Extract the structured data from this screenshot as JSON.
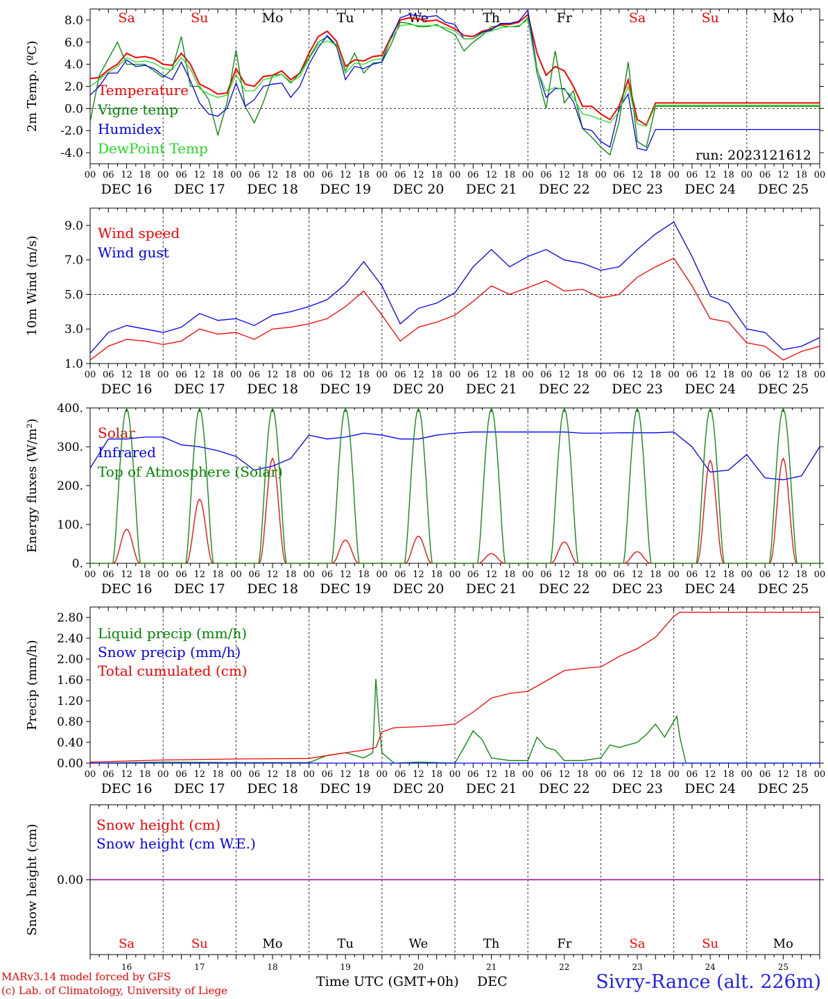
{
  "colors": {
    "red": "#ff0000",
    "green": "#008800",
    "blue": "#0000ff",
    "lime": "#22dd22",
    "purple": "#8800aa",
    "black": "#000000"
  },
  "days": [
    {
      "abbr": "Sa",
      "date": "DEC 16",
      "num": "16",
      "weekend": true
    },
    {
      "abbr": "Su",
      "date": "DEC 17",
      "num": "17",
      "weekend": true
    },
    {
      "abbr": "Mo",
      "date": "DEC 18",
      "num": "18",
      "weekend": false
    },
    {
      "abbr": "Tu",
      "date": "DEC 19",
      "num": "19",
      "weekend": false
    },
    {
      "abbr": "We",
      "date": "DEC 20",
      "num": "20",
      "weekend": false
    },
    {
      "abbr": "Th",
      "date": "DEC 21",
      "num": "21",
      "weekend": false
    },
    {
      "abbr": "Fr",
      "date": "DEC 22",
      "num": "22",
      "weekend": false
    },
    {
      "abbr": "Sa",
      "date": "DEC 23",
      "num": "23",
      "weekend": true
    },
    {
      "abbr": "Su",
      "date": "DEC 24",
      "num": "24",
      "weekend": true
    },
    {
      "abbr": "Mo",
      "date": "DEC 25",
      "num": "25",
      "weekend": false
    }
  ],
  "hour_ticks": [
    "00",
    "06",
    "12",
    "18"
  ],
  "footer": {
    "credit1": "MARv3.14 model forced by GFS",
    "credit2": "(c) Lab. of Climatology, University of Liege",
    "xlabel": "Time UTC (GMT+0h)",
    "month": "DEC",
    "station": "Sivry-Rance (alt. 226m)"
  },
  "chart_data": [
    {
      "type": "line",
      "ylabel": "2m Temp. (ºC)",
      "ylim": [
        -5,
        9
      ],
      "yticks": [
        "-4.0",
        "-2.0",
        "0.0",
        "2.0",
        "4.0",
        "6.0",
        "8.0"
      ],
      "yticks_values": [
        -4,
        -2,
        0,
        2,
        4,
        6,
        8
      ],
      "ref_line": 0,
      "annotation": "run: 2023121612",
      "x_hours_from_dec16_00": [
        0,
        3,
        6,
        9,
        12,
        15,
        18,
        21,
        24,
        27,
        30,
        33,
        36,
        39,
        42,
        45,
        48,
        51,
        54,
        57,
        60,
        63,
        66,
        69,
        72,
        75,
        78,
        81,
        84,
        87,
        90,
        93,
        96,
        99,
        102,
        105,
        108,
        111,
        114,
        117,
        120,
        123,
        126,
        129,
        132,
        135,
        138,
        141,
        144,
        147,
        150,
        153,
        156,
        159,
        162,
        165,
        168,
        171,
        174,
        177,
        180,
        183,
        186,
        189,
        192,
        195,
        198,
        201,
        204,
        207,
        210,
        213,
        216,
        219,
        222,
        225,
        228,
        231,
        234,
        237,
        240
      ],
      "series": [
        {
          "name": "Temperature",
          "color": "red",
          "values": [
            2.7,
            2.8,
            3.5,
            4.0,
            5.0,
            4.6,
            4.7,
            4.5,
            4.0,
            3.9,
            5.0,
            4.0,
            2.2,
            1.8,
            1.3,
            1.4,
            3.6,
            2.2,
            2.0,
            2.9,
            3.0,
            3.4,
            2.6,
            3.2,
            5.0,
            6.5,
            7.0,
            6.1,
            3.8,
            4.4,
            4.3,
            4.7,
            4.8,
            6.5,
            8.0,
            8.2,
            8.1,
            7.9,
            8.0,
            7.6,
            7.2,
            6.6,
            6.5,
            7.0,
            7.2,
            7.6,
            7.6,
            7.8,
            8.5,
            5.0,
            3.0,
            3.8,
            3.4,
            2.0,
            0.2,
            0.2,
            -0.5,
            -1.0,
            0.2,
            2.6,
            -1.0,
            -1.5,
            0.5,
            0.5,
            0.5,
            0.5,
            0.5,
            0.5,
            0.5,
            0.5,
            0.5,
            0.5,
            0.5,
            0.5,
            0.5,
            0.5,
            0.5,
            0.5,
            0.5,
            0.5,
            0.5
          ]
        },
        {
          "name": "Vigne temp",
          "color": "green",
          "values": [
            -1.2,
            3.0,
            4.5,
            6.0,
            4.0,
            4.0,
            4.0,
            3.4,
            2.8,
            3.6,
            6.5,
            2.0,
            2.0,
            0.8,
            -2.4,
            0.5,
            5.3,
            0.2,
            -1.3,
            0.6,
            3.0,
            3.1,
            2.3,
            3.2,
            4.6,
            6.0,
            6.5,
            5.6,
            3.4,
            5.0,
            3.2,
            4.1,
            4.2,
            5.8,
            7.8,
            7.7,
            7.4,
            7.4,
            7.6,
            7.1,
            6.7,
            5.2,
            6.0,
            6.6,
            7.4,
            7.5,
            7.4,
            7.4,
            8.2,
            3.2,
            0.0,
            5.2,
            0.5,
            1.6,
            -1.8,
            -2.6,
            -3.5,
            -4.2,
            -1.2,
            4.2,
            -3.0,
            -3.5,
            0.2,
            0.2,
            0.2,
            0.2,
            0.2,
            0.2,
            0.2,
            0.2,
            0.2,
            0.2,
            0.2,
            0.2,
            0.2,
            0.2,
            0.2,
            0.2,
            0.2,
            0.2,
            0.2
          ]
        },
        {
          "name": "Humidex",
          "color": "blue",
          "values": [
            1.2,
            2.0,
            3.2,
            3.2,
            4.4,
            3.8,
            3.9,
            3.6,
            3.0,
            2.6,
            4.2,
            2.5,
            0.5,
            -0.5,
            -0.7,
            0.0,
            2.3,
            0.2,
            0.8,
            2.0,
            2.2,
            2.3,
            1.0,
            2.0,
            4.0,
            5.5,
            6.6,
            5.7,
            2.6,
            3.8,
            3.6,
            4.0,
            4.2,
            6.4,
            8.2,
            8.5,
            8.4,
            8.3,
            8.4,
            7.8,
            7.6,
            6.3,
            6.3,
            6.9,
            7.1,
            7.7,
            7.7,
            7.9,
            8.9,
            3.6,
            1.0,
            1.8,
            1.8,
            0.6,
            -1.8,
            -2.0,
            -3.0,
            -3.5,
            0.0,
            1.3,
            -3.6,
            -3.8,
            -1.9,
            -1.9,
            -1.9,
            -1.9,
            -1.9,
            -1.9,
            -1.9,
            -1.9,
            -1.9,
            -1.9,
            -1.9,
            -1.9,
            -1.9,
            -1.9,
            -1.9,
            -1.9,
            -1.9,
            -1.9,
            -1.9
          ]
        },
        {
          "name": "DewPoint Temp",
          "color": "lime",
          "values": [
            2.0,
            2.6,
            3.3,
            3.8,
            4.6,
            4.2,
            4.3,
            4.1,
            3.6,
            3.5,
            4.6,
            3.6,
            1.8,
            1.3,
            1.0,
            1.2,
            3.1,
            1.6,
            1.6,
            2.6,
            2.8,
            3.1,
            2.4,
            2.9,
            4.5,
            5.8,
            6.1,
            5.8,
            3.2,
            4.1,
            4.0,
            4.4,
            4.5,
            6.3,
            7.5,
            7.6,
            7.5,
            7.5,
            7.5,
            7.3,
            7.0,
            6.3,
            6.3,
            6.8,
            7.0,
            7.3,
            7.4,
            7.5,
            8.0,
            3.5,
            1.6,
            1.9,
            1.7,
            1.0,
            -0.5,
            -0.7,
            -1.0,
            -1.3,
            -0.3,
            2.0,
            -1.4,
            -1.6,
            0.3,
            0.3,
            0.3,
            0.3,
            0.3,
            0.3,
            0.3,
            0.3,
            0.3,
            0.3,
            0.3,
            0.3,
            0.3,
            0.3,
            0.3,
            0.3,
            0.3,
            0.3,
            0.3
          ]
        }
      ]
    },
    {
      "type": "line",
      "ylabel": "10m Wind (m/s)",
      "ylim": [
        1,
        10
      ],
      "yticks": [
        "1.0",
        "3.0",
        "5.0",
        "7.0",
        "9.0"
      ],
      "yticks_values": [
        1,
        3,
        5,
        7,
        9
      ],
      "ref_line": 5,
      "x_hours_from_dec16_00": [
        0,
        6,
        12,
        18,
        24,
        30,
        36,
        42,
        48,
        54,
        60,
        66,
        72,
        78,
        84,
        90,
        96,
        102,
        108,
        114,
        120,
        126,
        132,
        138,
        144,
        150,
        156,
        162,
        168,
        174,
        180,
        186,
        192,
        198,
        204,
        210,
        216,
        222,
        228,
        234,
        240
      ],
      "series": [
        {
          "name": "Wind speed",
          "color": "red",
          "values": [
            1.2,
            2.0,
            2.4,
            2.3,
            2.1,
            2.3,
            3.0,
            2.7,
            2.8,
            2.4,
            3.0,
            3.1,
            3.3,
            3.6,
            4.3,
            5.2,
            3.8,
            2.3,
            3.1,
            3.4,
            3.8,
            4.6,
            5.5,
            5.0,
            5.4,
            5.8,
            5.2,
            5.3,
            4.8,
            5.0,
            6.0,
            6.6,
            7.1,
            5.5,
            3.6,
            3.4,
            2.2,
            2.0,
            1.2,
            1.7,
            2.0
          ]
        },
        {
          "name": "Wind gust",
          "color": "blue",
          "values": [
            1.6,
            2.8,
            3.2,
            3.0,
            2.8,
            3.1,
            3.9,
            3.5,
            3.6,
            3.2,
            3.8,
            4.0,
            4.3,
            4.7,
            5.6,
            6.9,
            5.5,
            3.3,
            4.2,
            4.5,
            5.1,
            6.6,
            7.6,
            6.6,
            7.2,
            7.6,
            7.0,
            6.8,
            6.4,
            6.6,
            7.6,
            8.5,
            9.2,
            7.2,
            4.9,
            4.5,
            3.0,
            2.8,
            1.8,
            2.0,
            2.5
          ]
        }
      ]
    },
    {
      "type": "line",
      "ylabel": "Energy fluxes (W/m²)",
      "ylim": [
        0,
        400
      ],
      "yticks": [
        "0.",
        "100.",
        "200.",
        "300.",
        "400."
      ],
      "yticks_values": [
        0,
        100,
        200,
        300,
        400
      ],
      "daylight_hours": [
        7.5,
        16.5
      ],
      "series": [
        {
          "name": "Solar",
          "color": "red",
          "daily_peaks": [
            88,
            165,
            270,
            60,
            70,
            25,
            55,
            30,
            265,
            270
          ]
        },
        {
          "name": "Infrared",
          "color": "blue",
          "x_hours_from_dec16_00": [
            0,
            6,
            12,
            18,
            24,
            30,
            36,
            42,
            48,
            54,
            60,
            66,
            72,
            78,
            84,
            90,
            96,
            102,
            108,
            114,
            120,
            126,
            132,
            138,
            144,
            150,
            156,
            162,
            168,
            174,
            180,
            186,
            192,
            198,
            204,
            210,
            216,
            222,
            228,
            234,
            240
          ],
          "values": [
            245,
            320,
            320,
            325,
            325,
            305,
            300,
            290,
            275,
            240,
            250,
            270,
            330,
            320,
            325,
            335,
            330,
            320,
            320,
            330,
            335,
            338,
            338,
            338,
            338,
            338,
            338,
            335,
            335,
            336,
            336,
            336,
            338,
            300,
            235,
            240,
            280,
            220,
            215,
            225,
            300
          ]
        },
        {
          "name": "Top of Atmosphere (Solar)",
          "color": "green",
          "daily_peaks": [
            398,
            398,
            398,
            398,
            398,
            398,
            398,
            398,
            398,
            398
          ]
        }
      ]
    },
    {
      "type": "line",
      "ylabel": "Precip (mm/h)",
      "ylim": [
        0,
        3.0
      ],
      "yticks": [
        "0.00",
        "0.40",
        "0.80",
        "1.20",
        "1.60",
        "2.00",
        "2.40",
        "2.80"
      ],
      "yticks_values": [
        0,
        0.4,
        0.8,
        1.2,
        1.6,
        2.0,
        2.4,
        2.8
      ],
      "series": [
        {
          "name": "Liquid precip (mm/h)",
          "color": "green",
          "x_hours_from_dec16_00": [
            0,
            24,
            48,
            72,
            78,
            84,
            90,
            93,
            94,
            95,
            96,
            100,
            108,
            114,
            120,
            123,
            126,
            129,
            132,
            138,
            144,
            147,
            150,
            153,
            156,
            162,
            168,
            171,
            174,
            177,
            180,
            183,
            186,
            189,
            192,
            193,
            194,
            196,
            240
          ],
          "values": [
            0,
            0.02,
            0.01,
            0.01,
            0.15,
            0.2,
            0.1,
            0.2,
            1.62,
            0.8,
            0.2,
            0.0,
            0.02,
            0.01,
            0.0,
            0.3,
            0.62,
            0.45,
            0.1,
            0.05,
            0.05,
            0.5,
            0.3,
            0.25,
            0.05,
            0.05,
            0.1,
            0.35,
            0.3,
            0.35,
            0.4,
            0.55,
            0.75,
            0.5,
            0.8,
            0.9,
            0.5,
            0.0,
            0.0
          ]
        },
        {
          "name": "Snow precip (mm/h)",
          "color": "blue",
          "x_hours_from_dec16_00": [
            0,
            240
          ],
          "values": [
            0,
            0
          ]
        },
        {
          "name": "Total cumulated (cm)",
          "color": "red",
          "x_hours_from_dec16_00": [
            0,
            24,
            48,
            72,
            84,
            90,
            94,
            96,
            100,
            108,
            114,
            120,
            126,
            132,
            138,
            144,
            150,
            156,
            162,
            168,
            174,
            180,
            186,
            192,
            194,
            216,
            240
          ],
          "values": [
            0.02,
            0.06,
            0.08,
            0.09,
            0.2,
            0.25,
            0.3,
            0.6,
            0.68,
            0.7,
            0.72,
            0.75,
            0.98,
            1.25,
            1.34,
            1.38,
            1.58,
            1.78,
            1.82,
            1.85,
            2.05,
            2.2,
            2.42,
            2.82,
            2.9,
            2.9,
            2.9
          ]
        }
      ]
    },
    {
      "type": "line",
      "ylabel": "Snow height (cm)",
      "ylim": [
        -1,
        1
      ],
      "yticks": [
        "0.00"
      ],
      "yticks_values": [
        0
      ],
      "series": [
        {
          "name": "Snow height (cm)",
          "color": "red",
          "x_hours_from_dec16_00": [
            0,
            240
          ],
          "values": [
            0,
            0
          ]
        },
        {
          "name": "Snow height (cm W.E.)",
          "color": "blue",
          "x_hours_from_dec16_00": [
            0,
            240
          ],
          "values": [
            0,
            0
          ]
        }
      ]
    }
  ]
}
